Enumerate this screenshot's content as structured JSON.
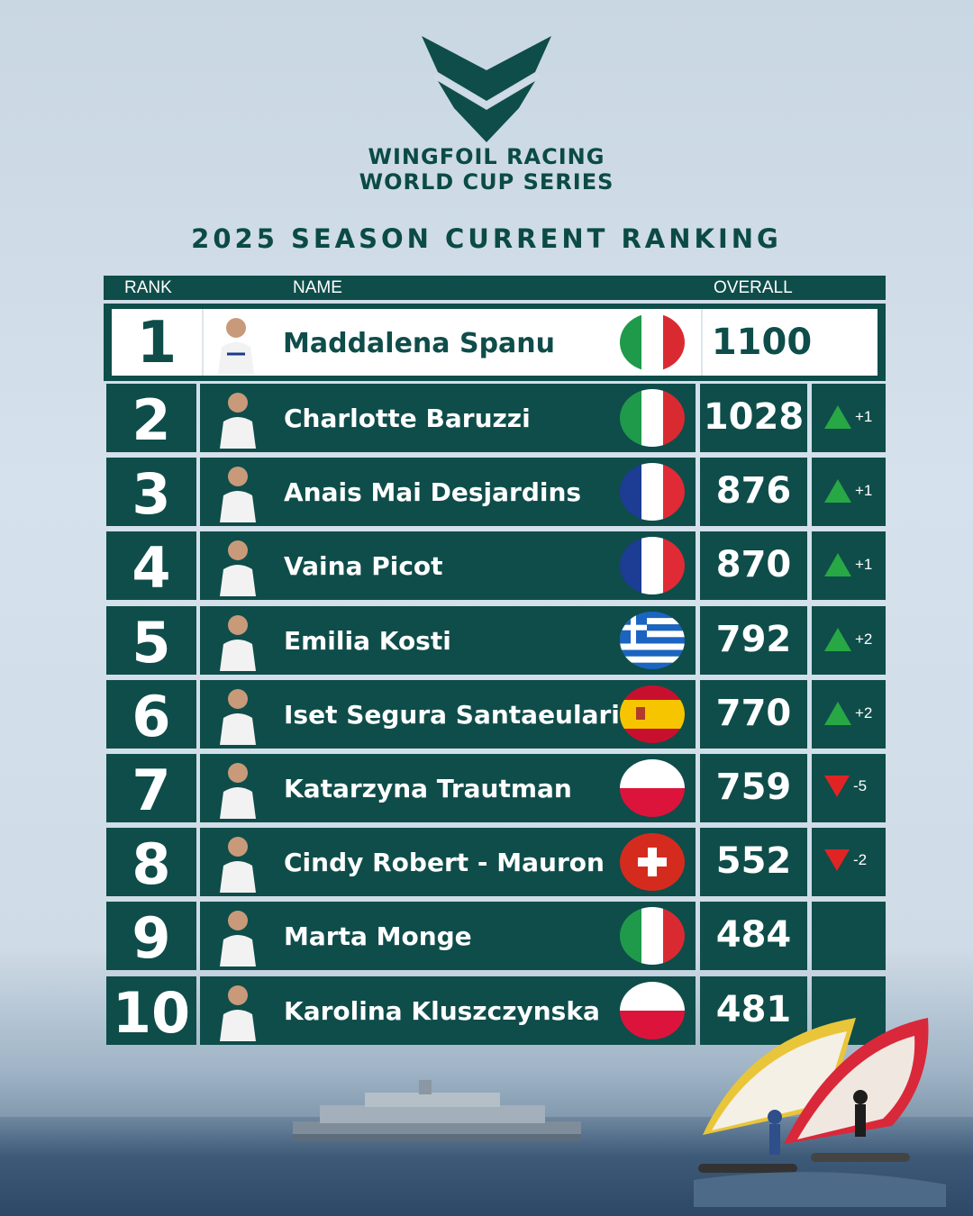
{
  "brand": {
    "line1": "WINGFOIL RACING",
    "line2": "WORLD CUP SERIES",
    "logo": "wingfoil-chevron-logo",
    "accent": "#0e4d4a"
  },
  "title": "2025 SEASON CURRENT RANKING",
  "headers": {
    "rank": "RANK",
    "name": "NAME",
    "overall": "OVERALL"
  },
  "first": {
    "rank": "1",
    "name": "Maddalena Spanu",
    "flag": "italy",
    "score": "1100"
  },
  "rows": [
    {
      "rank": "2",
      "name": "Charlotte Baruzzi",
      "flag": "italy",
      "score": "1028",
      "trend": "up",
      "change": "+1"
    },
    {
      "rank": "3",
      "name": "Anais Mai Desjardins",
      "flag": "france",
      "score": "876",
      "trend": "up",
      "change": "+1"
    },
    {
      "rank": "4",
      "name": "Vaina Picot",
      "flag": "france",
      "score": "870",
      "trend": "up",
      "change": "+1"
    },
    {
      "rank": "5",
      "name": "Emilia Kosti",
      "flag": "greece",
      "score": "792",
      "trend": "up",
      "change": "+2"
    },
    {
      "rank": "6",
      "name": "Iset Segura Santaeularia",
      "flag": "spain",
      "score": "770",
      "trend": "up",
      "change": "+2"
    },
    {
      "rank": "7",
      "name": "Katarzyna Trautman",
      "flag": "poland",
      "score": "759",
      "trend": "down",
      "change": "-5"
    },
    {
      "rank": "8",
      "name": "Cindy Robert - Mauron",
      "flag": "switzerland",
      "score": "552",
      "trend": "down",
      "change": "-2"
    },
    {
      "rank": "9",
      "name": "Marta Monge",
      "flag": "italy",
      "score": "484",
      "trend": "",
      "change": ""
    },
    {
      "rank": "10",
      "name": "Karolina Kluszczynska",
      "flag": "poland",
      "score": "481",
      "trend": "",
      "change": ""
    }
  ]
}
